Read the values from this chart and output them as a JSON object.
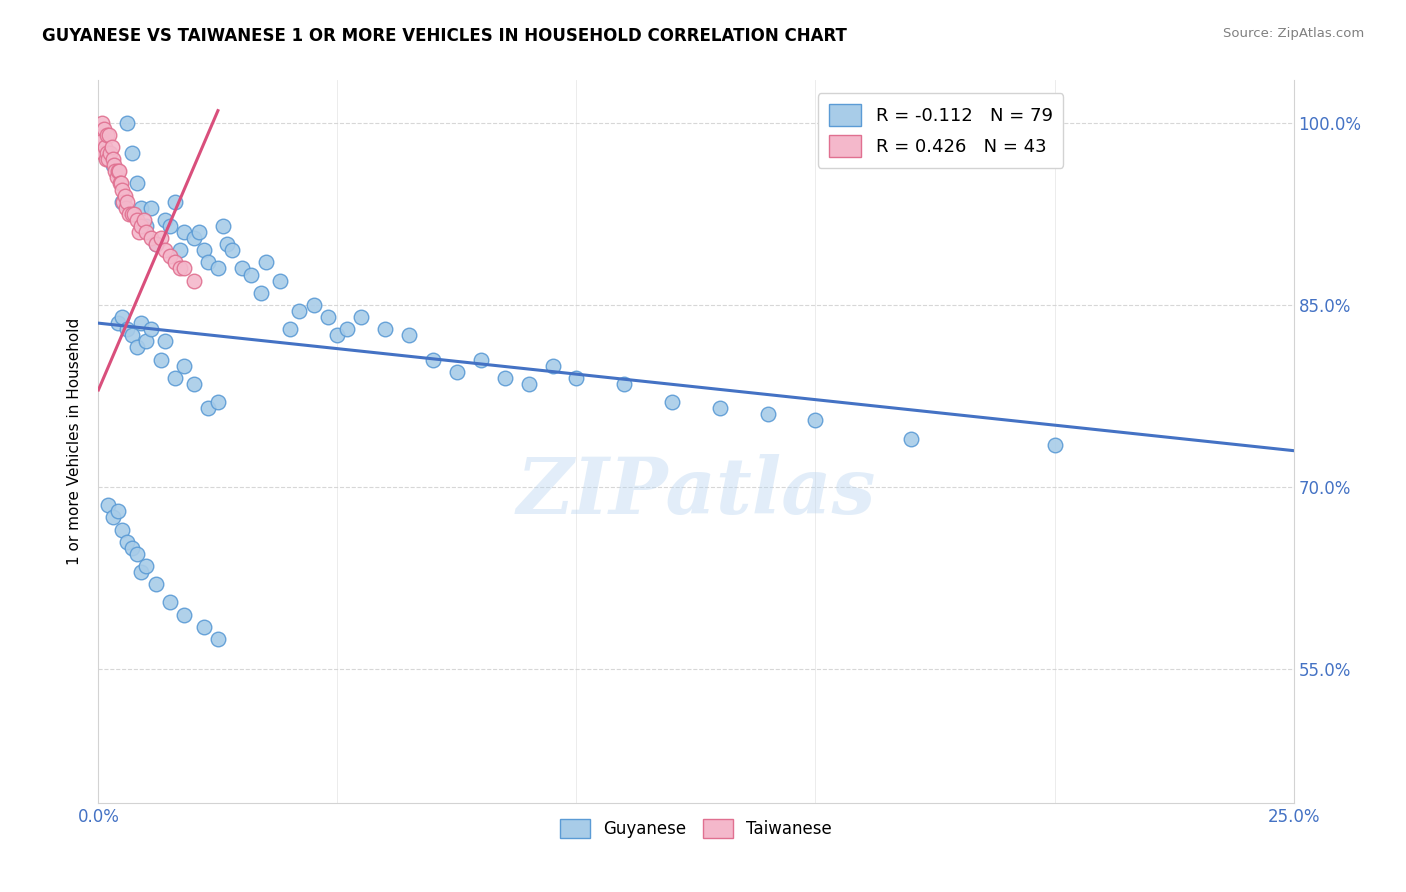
{
  "title": "GUYANESE VS TAIWANESE 1 OR MORE VEHICLES IN HOUSEHOLD CORRELATION CHART",
  "source": "Source: ZipAtlas.com",
  "ylabel": "1 or more Vehicles in Household",
  "xlim": [
    0.0,
    25.0
  ],
  "ylim": [
    44.0,
    103.5
  ],
  "yticks": [
    55.0,
    70.0,
    85.0,
    100.0
  ],
  "yticklabels": [
    "55.0%",
    "70.0%",
    "85.0%",
    "100.0%"
  ],
  "xticks": [
    0.0,
    5.0,
    10.0,
    15.0,
    20.0,
    25.0
  ],
  "xticklabels": [
    "0.0%",
    "",
    "",
    "",
    "",
    "25.0%"
  ],
  "watermark": "ZIPatlas",
  "blue_color": "#a8cce8",
  "blue_edge_color": "#5b9bd5",
  "pink_color": "#f4b8cb",
  "pink_edge_color": "#e07090",
  "blue_line_color": "#4472c4",
  "pink_line_color": "#d94f7c",
  "tick_color": "#4472c4",
  "legend_blue_label": "R = -0.112   N = 79",
  "legend_pink_label": "R = 0.426   N = 43",
  "bottom_legend_blue": "Guyanese",
  "bottom_legend_pink": "Taiwanese",
  "blue_line_x0": 0.0,
  "blue_line_y0": 83.5,
  "blue_line_x1": 25.0,
  "blue_line_y1": 73.0,
  "pink_line_x0": 0.0,
  "pink_line_y0": 78.0,
  "pink_line_x1": 2.5,
  "pink_line_y1": 101.0,
  "guyanese_x": [
    0.3,
    0.5,
    0.6,
    0.7,
    0.8,
    0.9,
    1.0,
    1.1,
    1.2,
    1.4,
    1.5,
    1.6,
    1.7,
    1.8,
    2.0,
    2.1,
    2.2,
    2.3,
    2.5,
    2.6,
    2.7,
    2.8,
    3.0,
    3.2,
    3.4,
    3.5,
    3.8,
    4.0,
    4.2,
    4.5,
    4.8,
    5.0,
    5.2,
    5.5,
    6.0,
    6.5,
    7.0,
    7.5,
    8.0,
    8.5,
    9.0,
    9.5,
    10.0,
    11.0,
    12.0,
    13.0,
    14.0,
    15.0,
    17.0,
    20.0,
    0.4,
    0.5,
    0.6,
    0.7,
    0.8,
    0.9,
    1.0,
    1.1,
    1.3,
    1.4,
    1.6,
    1.8,
    2.0,
    2.3,
    2.5,
    0.2,
    0.3,
    0.4,
    0.5,
    0.6,
    0.7,
    0.8,
    0.9,
    1.0,
    1.2,
    1.5,
    1.8,
    2.2,
    2.5
  ],
  "guyanese_y": [
    96.5,
    93.5,
    100.0,
    97.5,
    95.0,
    93.0,
    91.5,
    93.0,
    90.0,
    92.0,
    91.5,
    93.5,
    89.5,
    91.0,
    90.5,
    91.0,
    89.5,
    88.5,
    88.0,
    91.5,
    90.0,
    89.5,
    88.0,
    87.5,
    86.0,
    88.5,
    87.0,
    83.0,
    84.5,
    85.0,
    84.0,
    82.5,
    83.0,
    84.0,
    83.0,
    82.5,
    80.5,
    79.5,
    80.5,
    79.0,
    78.5,
    80.0,
    79.0,
    78.5,
    77.0,
    76.5,
    76.0,
    75.5,
    74.0,
    73.5,
    83.5,
    84.0,
    83.0,
    82.5,
    81.5,
    83.5,
    82.0,
    83.0,
    80.5,
    82.0,
    79.0,
    80.0,
    78.5,
    76.5,
    77.0,
    68.5,
    67.5,
    68.0,
    66.5,
    65.5,
    65.0,
    64.5,
    63.0,
    63.5,
    62.0,
    60.5,
    59.5,
    58.5,
    57.5
  ],
  "taiwanese_x": [
    0.05,
    0.07,
    0.08,
    0.1,
    0.12,
    0.13,
    0.15,
    0.17,
    0.18,
    0.2,
    0.22,
    0.25,
    0.28,
    0.3,
    0.32,
    0.35,
    0.38,
    0.4,
    0.43,
    0.45,
    0.48,
    0.5,
    0.52,
    0.55,
    0.58,
    0.6,
    0.65,
    0.7,
    0.75,
    0.8,
    0.85,
    0.9,
    0.95,
    1.0,
    1.1,
    1.2,
    1.3,
    1.4,
    1.5,
    1.6,
    1.7,
    1.8,
    2.0
  ],
  "taiwanese_y": [
    99.0,
    100.0,
    98.5,
    97.5,
    99.5,
    98.0,
    97.0,
    99.0,
    97.5,
    97.0,
    99.0,
    97.5,
    98.0,
    97.0,
    96.5,
    96.0,
    95.5,
    96.0,
    96.0,
    95.0,
    95.0,
    94.5,
    93.5,
    94.0,
    93.0,
    93.5,
    92.5,
    92.5,
    92.5,
    92.0,
    91.0,
    91.5,
    92.0,
    91.0,
    90.5,
    90.0,
    90.5,
    89.5,
    89.0,
    88.5,
    88.0,
    88.0,
    87.0
  ]
}
